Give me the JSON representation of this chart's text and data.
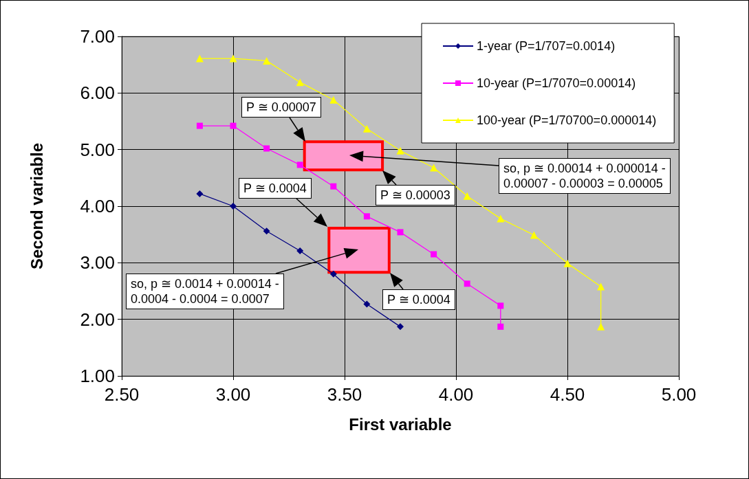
{
  "chart_data": {
    "type": "line",
    "xlabel": "First variable",
    "ylabel": "Second variable",
    "xlim": [
      2.5,
      5.0
    ],
    "xticks": [
      {
        "value": 2.5,
        "label": "2.50"
      },
      {
        "value": 3.0,
        "label": "3.00"
      },
      {
        "value": 3.5,
        "label": "3.50"
      },
      {
        "value": 4.0,
        "label": "4.00"
      },
      {
        "value": 4.5,
        "label": "4.50"
      },
      {
        "value": 5.0,
        "label": "5.00"
      }
    ],
    "ylim": [
      1.0,
      7.0
    ],
    "yticks": [
      {
        "value": 1,
        "label": "1.00"
      },
      {
        "value": 2,
        "label": "2.00"
      },
      {
        "value": 3,
        "label": "3.00"
      },
      {
        "value": 4,
        "label": "4.00"
      },
      {
        "value": 5,
        "label": "5.00"
      },
      {
        "value": 6,
        "label": "6.00"
      },
      {
        "value": 7,
        "label": "7.00"
      }
    ],
    "grid": true,
    "legend": "top right",
    "series": [
      {
        "name": "1-year (P=1/707=0.0014)",
        "color": "#000080",
        "marker": "diamond",
        "x": [
          2.85,
          3.0,
          3.15,
          3.3,
          3.45,
          3.6,
          3.75
        ],
        "values": [
          4.22,
          4.0,
          3.56,
          3.21,
          2.8,
          2.27,
          1.87
        ]
      },
      {
        "name": "10-year (P=1/7070=0.00014)",
        "color": "#ff00ff",
        "marker": "square",
        "x": [
          2.85,
          3.0,
          3.15,
          3.3,
          3.45,
          3.6,
          3.75,
          3.9,
          4.05,
          4.2,
          4.2
        ],
        "values": [
          5.42,
          5.42,
          5.02,
          4.73,
          4.35,
          3.82,
          3.54,
          3.15,
          2.63,
          2.24,
          1.87
        ]
      },
      {
        "name": "100-year (P=1/70700=0.000014)",
        "color": "#ffff00",
        "marker": "triangle",
        "x": [
          2.85,
          3.0,
          3.15,
          3.3,
          3.45,
          3.6,
          3.75,
          3.9,
          4.05,
          4.2,
          4.35,
          4.5,
          4.65,
          4.65
        ],
        "values": [
          6.61,
          6.61,
          6.57,
          6.19,
          5.88,
          5.37,
          4.98,
          4.68,
          4.18,
          3.78,
          3.49,
          2.99,
          2.58,
          1.87
        ]
      },
      {
        "type": "area",
        "color": "#ff99cc",
        "x": [
          3.32,
          3.67,
          3.67,
          3.32,
          3.32
        ],
        "values": [
          4.64,
          4.64,
          5.14,
          5.14,
          4.64
        ]
      },
      {
        "type": "area",
        "color": "#ff99cc",
        "x": [
          3.43,
          3.7,
          3.7,
          3.43,
          3.43
        ],
        "values": [
          2.83,
          2.83,
          3.61,
          3.61,
          2.83
        ]
      }
    ],
    "annotations": [
      "P ≅ 0.00007",
      "P ≅ 0.00003",
      "so, p ≅ 0.00014 + 0.000014 -\n0.00007 - 0.00003 = 0.00005",
      "P ≅ 0.0004",
      "P ≅ 0.0004",
      "so, p ≅ 0.0014 + 0.00014 -\n0.0004 - 0.0004 = 0.0007"
    ]
  }
}
